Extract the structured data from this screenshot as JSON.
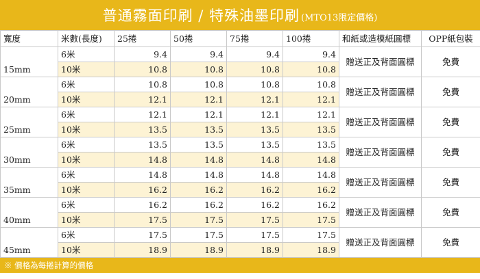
{
  "banner": {
    "title": "普通霧面印刷 / 特殊油墨印刷",
    "note": "(MTO13限定價格)"
  },
  "headers": {
    "width": "寬度",
    "length": "米數(長度)",
    "qty25": "25捲",
    "qty50": "50捲",
    "qty75": "75捲",
    "qty100": "100捲",
    "gift": "和紙或造模紙圓標",
    "opp": "OPP紙包裝"
  },
  "groups": [
    {
      "width": "15mm",
      "gift": "贈送正及背面圓標",
      "opp": "免費",
      "rows": [
        {
          "len": "6米",
          "p25": "9.4",
          "p50": "9.4",
          "p75": "9.4",
          "p100": "9.4"
        },
        {
          "len": "10米",
          "p25": "10.8",
          "p50": "10.8",
          "p75": "10.8",
          "p100": "10.8"
        }
      ]
    },
    {
      "width": "20mm",
      "gift": "贈送正及背面圓標",
      "opp": "免費",
      "rows": [
        {
          "len": "6米",
          "p25": "10.8",
          "p50": "10.8",
          "p75": "10.8",
          "p100": "10.8"
        },
        {
          "len": "10米",
          "p25": "12.1",
          "p50": "12.1",
          "p75": "12.1",
          "p100": "12.1"
        }
      ]
    },
    {
      "width": "25mm",
      "gift": "贈送正及背面圓標",
      "opp": "免費",
      "rows": [
        {
          "len": "6米",
          "p25": "12.1",
          "p50": "12.1",
          "p75": "12.1",
          "p100": "12.1"
        },
        {
          "len": "10米",
          "p25": "13.5",
          "p50": "13.5",
          "p75": "13.5",
          "p100": "13.5"
        }
      ]
    },
    {
      "width": "30mm",
      "gift": "贈送正及背面圓標",
      "opp": "免費",
      "rows": [
        {
          "len": "6米",
          "p25": "13.5",
          "p50": "13.5",
          "p75": "13.5",
          "p100": "13.5"
        },
        {
          "len": "10米",
          "p25": "14.8",
          "p50": "14.8",
          "p75": "14.8",
          "p100": "14.8"
        }
      ]
    },
    {
      "width": "35mm",
      "gift": "贈送正及背面圓標",
      "opp": "免費",
      "rows": [
        {
          "len": "6米",
          "p25": "14.8",
          "p50": "14.8",
          "p75": "14.8",
          "p100": "14.8"
        },
        {
          "len": "10米",
          "p25": "16.2",
          "p50": "16.2",
          "p75": "16.2",
          "p100": "16.2"
        }
      ]
    },
    {
      "width": "40mm",
      "gift": "贈送正及背面圓標",
      "opp": "免費",
      "rows": [
        {
          "len": "6米",
          "p25": "16.2",
          "p50": "16.2",
          "p75": "16.2",
          "p100": "16.2"
        },
        {
          "len": "10米",
          "p25": "17.5",
          "p50": "17.5",
          "p75": "17.5",
          "p100": "17.5"
        }
      ]
    },
    {
      "width": "45mm",
      "gift": "贈送正及背面圓標",
      "opp": "免費",
      "rows": [
        {
          "len": "6米",
          "p25": "17.5",
          "p50": "17.5",
          "p75": "17.5",
          "p100": "17.5"
        },
        {
          "len": "10米",
          "p25": "18.9",
          "p50": "18.9",
          "p75": "18.9",
          "p100": "18.9"
        }
      ]
    }
  ],
  "footer": "※ 價格為每捲計算的價格",
  "colors": {
    "accent": "#e8b71a",
    "row_alt": "#fdf3d4"
  }
}
